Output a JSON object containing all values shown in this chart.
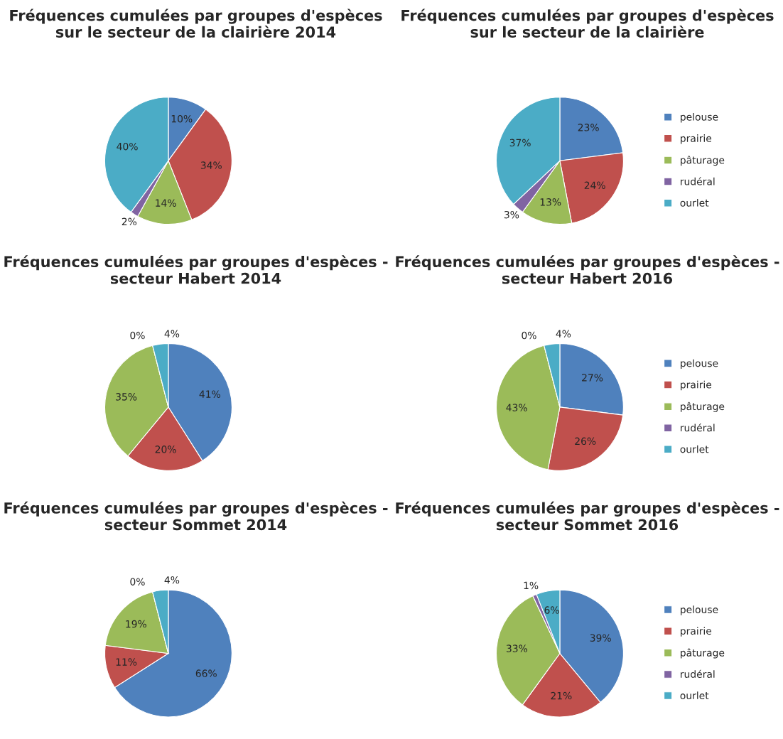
{
  "chart_data": [
    {
      "type": "pie",
      "title": "Fréquences cumulées par groupes d'espèces sur le secteur de la clairière 2014",
      "categories": [
        null,
        null,
        null,
        null,
        null
      ],
      "values": [
        10,
        34,
        14,
        2,
        40
      ],
      "value_labels": [
        "10%",
        "34%",
        "14%",
        "2%",
        "40%"
      ],
      "colors": [
        "#4f81bd",
        "#c0504d",
        "#9bbb59",
        "#8064a2",
        "#4bacc6"
      ],
      "legend": false
    },
    {
      "type": "pie",
      "title": "Fréquences cumulées par groupes d'espèces sur le secteur de la clairière",
      "categories": [
        "pelouse",
        "prairie",
        "pâturage",
        "rudéral",
        "ourlet"
      ],
      "values": [
        23,
        24,
        13,
        3,
        37
      ],
      "value_labels": [
        "23%",
        "24%",
        "13%",
        "3%",
        "37%"
      ],
      "colors": [
        "#4f81bd",
        "#c0504d",
        "#9bbb59",
        "#8064a2",
        "#4bacc6"
      ],
      "legend": "right"
    },
    {
      "type": "pie",
      "title": "Fréquences cumulées par groupes d'espèces - secteur Habert 2014",
      "categories": [
        null,
        null,
        null,
        null,
        null
      ],
      "values": [
        41,
        20,
        35,
        0,
        4
      ],
      "value_labels": [
        "41%",
        "20%",
        "35%",
        "0%",
        "4%"
      ],
      "colors": [
        "#4f81bd",
        "#c0504d",
        "#9bbb59",
        "#8064a2",
        "#4bacc6"
      ],
      "legend": false
    },
    {
      "type": "pie",
      "title": "Fréquences cumulées par groupes d'espèces - secteur Habert 2016",
      "categories": [
        "pelouse",
        "prairie",
        "pâturage",
        "rudéral",
        "ourlet"
      ],
      "values": [
        27,
        26,
        43,
        0,
        4
      ],
      "value_labels": [
        "27%",
        "26%",
        "43%",
        "0%",
        "4%"
      ],
      "colors": [
        "#4f81bd",
        "#c0504d",
        "#9bbb59",
        "#8064a2",
        "#4bacc6"
      ],
      "legend": "right"
    },
    {
      "type": "pie",
      "title": "Fréquences cumulées par groupes d'espèces - secteur Sommet 2014",
      "categories": [
        null,
        null,
        null,
        null,
        null
      ],
      "values": [
        66,
        11,
        19,
        0,
        4
      ],
      "value_labels": [
        "66%",
        "11%",
        "19%",
        "0%",
        "4%"
      ],
      "colors": [
        "#4f81bd",
        "#c0504d",
        "#9bbb59",
        "#8064a2",
        "#4bacc6"
      ],
      "legend": false
    },
    {
      "type": "pie",
      "title": "Fréquences cumulées par groupes d'espèces - secteur Sommet 2016",
      "categories": [
        "pelouse",
        "prairie",
        "pâturage",
        "rudéral",
        "ourlet"
      ],
      "values": [
        39,
        21,
        33,
        1,
        6
      ],
      "value_labels": [
        "39%",
        "21%",
        "33%",
        "1%",
        "6%"
      ],
      "colors": [
        "#4f81bd",
        "#c0504d",
        "#9bbb59",
        "#8064a2",
        "#4bacc6"
      ],
      "legend": "right"
    }
  ]
}
